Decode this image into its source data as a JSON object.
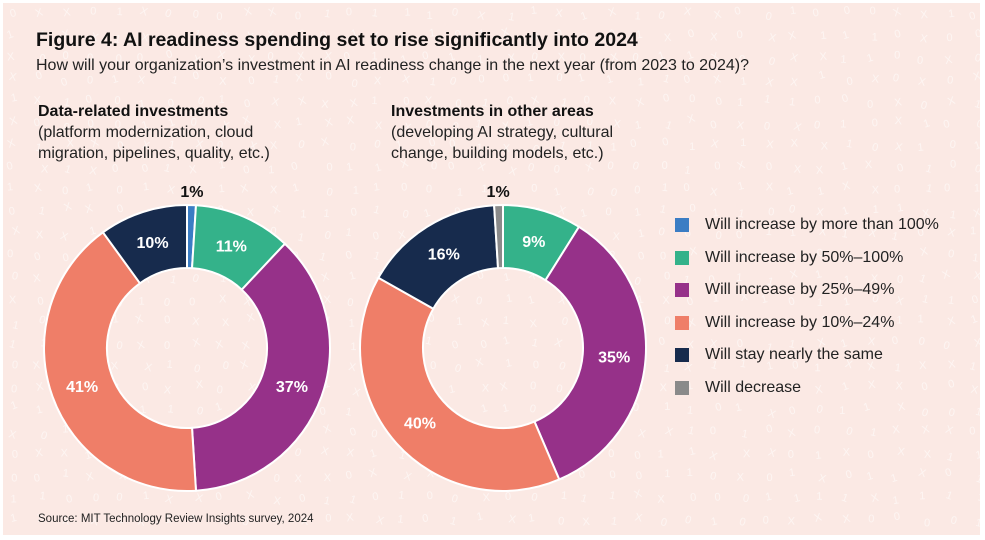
{
  "title": "Figure 4: AI readiness spending set to rise significantly into 2024",
  "subtitle": "How will your organization’s investment in AI readiness change in the next year (from 2023 to 2024)?",
  "source": "Source: MIT Technology Review Insights survey, 2024",
  "colors": {
    "background": "#fbe9e4",
    "increase_more_100": "#3b7dc4",
    "increase_50_100": "#34b28a",
    "increase_25_49": "#963189",
    "increase_10_24": "#ef7e68",
    "stay_same": "#172b4d",
    "decrease": "#8a8a8a"
  },
  "chart_data": [
    {
      "type": "pie",
      "donut": true,
      "title": "Data-related investments",
      "subtitle": "(platform modernization, cloud migration, pipelines, quality, etc.)",
      "categories": [
        "Will increase by more than 100%",
        "Will increase by 50%–100%",
        "Will increase by 25%–49%",
        "Will increase by 10%–24%",
        "Will stay nearly the same",
        "Will decrease"
      ],
      "values": [
        1,
        11,
        37,
        41,
        10,
        0
      ],
      "labels": [
        "1%",
        "11%",
        "37%",
        "41%",
        "10%",
        ""
      ],
      "legend": "right"
    },
    {
      "type": "pie",
      "donut": true,
      "title": "Investments in other areas",
      "subtitle": "(developing AI strategy, cultural change, building models, etc.)",
      "categories": [
        "Will increase by more than 100%",
        "Will increase by 50%–100%",
        "Will increase by 25%–49%",
        "Will increase by 10%–24%",
        "Will stay nearly the same",
        "Will decrease"
      ],
      "values": [
        0,
        9,
        35,
        40,
        16,
        1
      ],
      "labels": [
        "",
        "9%",
        "35%",
        "40%",
        "16%",
        "1%"
      ],
      "legend": "right"
    }
  ],
  "legend": [
    {
      "label": "Will increase by more than 100%",
      "color": "#3b7dc4"
    },
    {
      "label": "Will increase by 50%–100%",
      "color": "#34b28a"
    },
    {
      "label": "Will increase by 25%–49%",
      "color": "#963189"
    },
    {
      "label": "Will increase by 10%–24%",
      "color": "#ef7e68"
    },
    {
      "label": "Will stay nearly the same",
      "color": "#172b4d"
    },
    {
      "label": "Will decrease",
      "color": "#8a8a8a"
    }
  ]
}
